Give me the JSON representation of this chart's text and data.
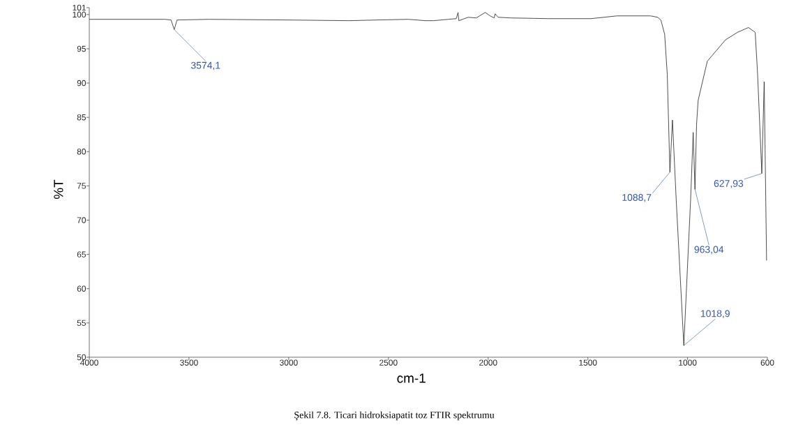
{
  "chart_data": {
    "type": "line",
    "xlabel": "cm-1",
    "ylabel": "%T",
    "xlim": [
      4000,
      600
    ],
    "ylim": [
      50,
      101
    ],
    "xticks": [
      4000,
      3500,
      3000,
      2500,
      2000,
      1500,
      1000,
      600
    ],
    "yticks": [
      50,
      55,
      60,
      65,
      70,
      75,
      80,
      85,
      90,
      95,
      100,
      101
    ],
    "x": [
      4000,
      3800,
      3620,
      3590,
      3574.1,
      3560,
      3400,
      3000,
      2700,
      2559,
      2400,
      2314,
      2274,
      2200,
      2160,
      2151,
      2147,
      2100,
      2060,
      2015,
      1990,
      1970,
      1965,
      1950,
      1885,
      1700,
      1485,
      1354,
      1250,
      1186,
      1150,
      1134,
      1115,
      1102,
      1088.7,
      1076,
      1057,
      1018.9,
      985,
      972,
      963.04,
      955,
      947,
      901,
      810,
      750,
      695,
      661,
      649,
      627.93,
      616,
      604
    ],
    "series": [
      {
        "color": "#222222",
        "values": [
          99.3,
          99.3,
          99.3,
          99.2,
          97.8,
          99.2,
          99.3,
          99.2,
          99.1,
          99.2,
          99.3,
          99.1,
          99.1,
          99.3,
          99.4,
          100.3,
          99.1,
          99.6,
          99.5,
          100.3,
          99.8,
          99.5,
          100.1,
          99.6,
          99.5,
          99.4,
          99.4,
          99.8,
          99.8,
          99.8,
          99.6,
          99.2,
          97.1,
          91.3,
          77,
          84.6,
          72.9,
          51.7,
          72.9,
          82.8,
          74.5,
          84,
          87.5,
          93.2,
          96.3,
          97.4,
          98.1,
          97.4,
          91.3,
          76.8,
          90.2,
          64.1
        ]
      }
    ],
    "annotations": [
      {
        "text": "3574,1",
        "x": 3574.1,
        "y": 97.8
      },
      {
        "text": "1088,7",
        "x": 1088.7,
        "y": 77
      },
      {
        "text": "1018,9",
        "x": 1018.9,
        "y": 51.7
      },
      {
        "text": "963,04",
        "x": 963.04,
        "y": 74.5
      },
      {
        "text": "627,93",
        "x": 627.93,
        "y": 76.8
      },
      "Şekil 7.8. Ticari hidroksiapatit toz FTIR spektrumu"
    ]
  }
}
